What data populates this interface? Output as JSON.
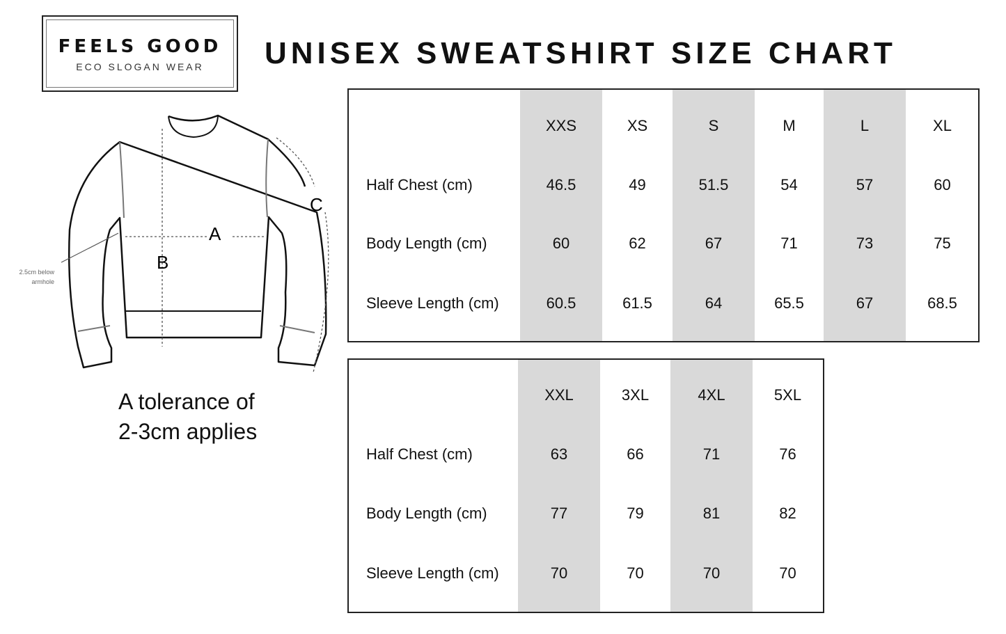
{
  "logo": {
    "title": "FEELS GOOD",
    "subtitle": "ECO SLOGAN WEAR"
  },
  "title": "UNISEX SWEATSHIRT SIZE CHART",
  "diagram": {
    "labels": {
      "a": "A",
      "b": "B",
      "c": "C"
    },
    "note_line1": "2.5cm below",
    "note_line2": "armhole"
  },
  "tolerance": {
    "line1": "A tolerance of",
    "line2": "2-3cm applies"
  },
  "colors": {
    "shaded_column": "#d9d9d9",
    "border": "#222222"
  },
  "table1": {
    "sizes": [
      "XXS",
      "XS",
      "S",
      "M",
      "L",
      "XL"
    ],
    "rows": [
      {
        "label": "Half Chest (cm)",
        "values": [
          "46.5",
          "49",
          "51.5",
          "54",
          "57",
          "60"
        ]
      },
      {
        "label": "Body Length (cm)",
        "values": [
          "60",
          "62",
          "67",
          "71",
          "73",
          "75"
        ]
      },
      {
        "label": "Sleeve Length (cm)",
        "values": [
          "60.5",
          "61.5",
          "64",
          "65.5",
          "67",
          "68.5"
        ]
      }
    ]
  },
  "table2": {
    "sizes": [
      "XXL",
      "3XL",
      "4XL",
      "5XL"
    ],
    "rows": [
      {
        "label": "Half Chest (cm)",
        "values": [
          "63",
          "66",
          "71",
          "76"
        ]
      },
      {
        "label": "Body Length (cm)",
        "values": [
          "77",
          "79",
          "81",
          "82"
        ]
      },
      {
        "label": "Sleeve Length (cm)",
        "values": [
          "70",
          "70",
          "70",
          "70"
        ]
      }
    ]
  }
}
